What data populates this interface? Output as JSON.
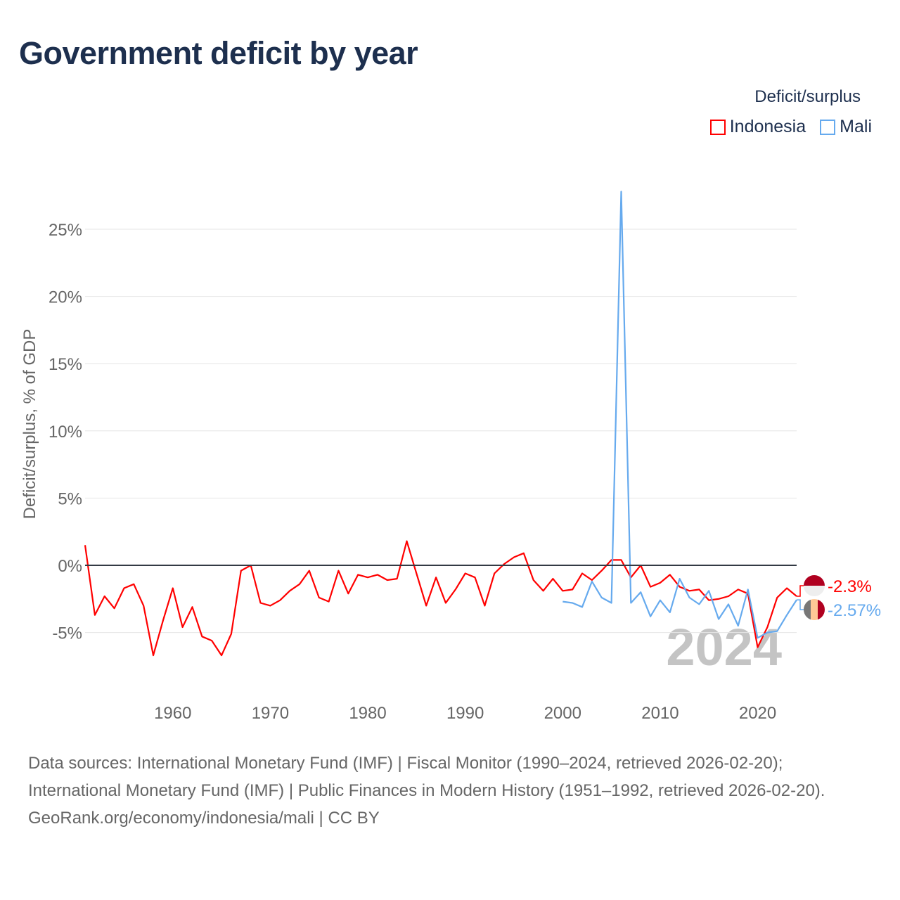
{
  "title": "Government deficit by year",
  "legend": {
    "title": "Deficit/surplus",
    "items": [
      {
        "label": "Indonesia",
        "color": "#ff0000"
      },
      {
        "label": "Mali",
        "color": "#66aaee"
      }
    ]
  },
  "chart_data": {
    "type": "line",
    "title": "Government deficit by year",
    "xlabel": "",
    "ylabel": "Deficit/surplus, % of GDP",
    "ylim": [
      -8.5,
      28
    ],
    "xlim": [
      1951,
      2024
    ],
    "yticks": [
      -5,
      0,
      5,
      10,
      15,
      20,
      25
    ],
    "ytick_labels": [
      "-5%",
      "0%",
      "5%",
      "10%",
      "15%",
      "20%",
      "25%"
    ],
    "xticks": [
      1960,
      1970,
      1980,
      1990,
      2000,
      2010,
      2020
    ],
    "xtick_labels": [
      "1960",
      "1970",
      "1980",
      "1990",
      "2000",
      "2010",
      "2020"
    ],
    "grid": true,
    "watermark_year": "2024",
    "series": [
      {
        "name": "Indonesia",
        "color": "#ff0000",
        "start_year": 1951,
        "end_label": "-2.3%",
        "values": [
          1.5,
          -3.7,
          -2.3,
          -3.2,
          -1.7,
          -1.4,
          -3.0,
          -6.7,
          -4.1,
          -1.7,
          -4.6,
          -3.1,
          -5.3,
          -5.6,
          -6.7,
          -5.1,
          -0.4,
          0.0,
          -2.8,
          -3.0,
          -2.6,
          -1.9,
          -1.4,
          -0.4,
          -2.4,
          -2.7,
          -0.4,
          -2.1,
          -0.7,
          -0.9,
          -0.7,
          -1.1,
          -1.0,
          1.8,
          -0.6,
          -3.0,
          -0.9,
          -2.8,
          -1.8,
          -0.6,
          -0.9,
          -3.0,
          -0.6,
          0.1,
          0.6,
          0.9,
          -1.1,
          -1.9,
          -1.0,
          -1.9,
          -1.8,
          -0.6,
          -1.1,
          -0.4,
          0.4,
          0.4,
          -0.9,
          0.0,
          -1.6,
          -1.3,
          -0.7,
          -1.6,
          -1.9,
          -1.8,
          -2.6,
          -2.5,
          -2.3,
          -1.8,
          -2.1,
          -6.1,
          -4.6,
          -2.4,
          -1.7,
          -2.3
        ]
      },
      {
        "name": "Mali",
        "color": "#66aaee",
        "start_year": 2000,
        "end_label": "-2.57%",
        "values": [
          -2.7,
          -2.8,
          -3.1,
          -1.2,
          -2.4,
          -2.8,
          27.8,
          -2.8,
          -2.0,
          -3.8,
          -2.6,
          -3.5,
          -1.0,
          -2.4,
          -2.9,
          -1.9,
          -4.0,
          -2.9,
          -4.5,
          -1.8,
          -5.4,
          -5.0,
          -4.9,
          -3.7,
          -2.57
        ]
      }
    ]
  },
  "footer": {
    "sources": "Data sources: International Monetary Fund (IMF) | Fiscal Monitor (1990–2024, retrieved 2026-02-20); International Monetary Fund (IMF) | Public Finances in Modern History (1951–1992, retrieved 2026-02-20).",
    "credit": "GeoRank.org/economy/indonesia/mali | CC BY"
  }
}
